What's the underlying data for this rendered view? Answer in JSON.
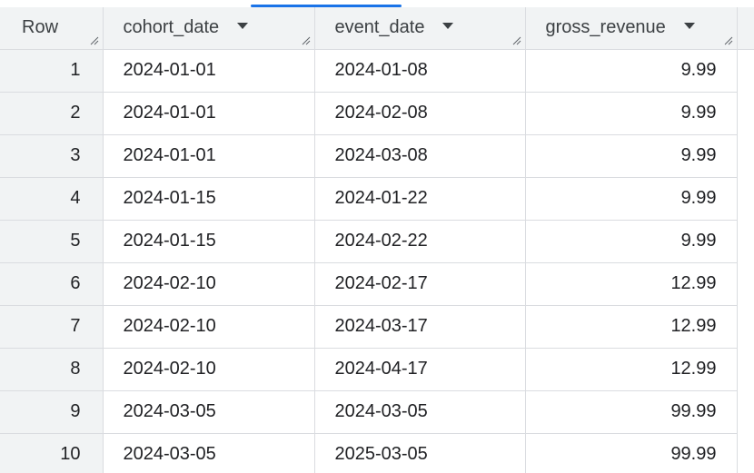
{
  "table": {
    "columns": [
      {
        "label": "Row"
      },
      {
        "label": "cohort_date"
      },
      {
        "label": "event_date"
      },
      {
        "label": "gross_revenue"
      }
    ],
    "rows": [
      {
        "row": "1",
        "cohort_date": "2024-01-01",
        "event_date": "2024-01-08",
        "gross_revenue": "9.99"
      },
      {
        "row": "2",
        "cohort_date": "2024-01-01",
        "event_date": "2024-02-08",
        "gross_revenue": "9.99"
      },
      {
        "row": "3",
        "cohort_date": "2024-01-01",
        "event_date": "2024-03-08",
        "gross_revenue": "9.99"
      },
      {
        "row": "4",
        "cohort_date": "2024-01-15",
        "event_date": "2024-01-22",
        "gross_revenue": "9.99"
      },
      {
        "row": "5",
        "cohort_date": "2024-01-15",
        "event_date": "2024-02-22",
        "gross_revenue": "9.99"
      },
      {
        "row": "6",
        "cohort_date": "2024-02-10",
        "event_date": "2024-02-17",
        "gross_revenue": "12.99"
      },
      {
        "row": "7",
        "cohort_date": "2024-02-10",
        "event_date": "2024-03-17",
        "gross_revenue": "12.99"
      },
      {
        "row": "8",
        "cohort_date": "2024-02-10",
        "event_date": "2024-04-17",
        "gross_revenue": "12.99"
      },
      {
        "row": "9",
        "cohort_date": "2024-03-05",
        "event_date": "2024-03-05",
        "gross_revenue": "99.99"
      },
      {
        "row": "10",
        "cohort_date": "2024-03-05",
        "event_date": "2025-03-05",
        "gross_revenue": "99.99"
      }
    ]
  },
  "icons": {
    "sort_menu": "chevron-down-icon",
    "resize": "resize-handle-icon"
  },
  "colors": {
    "header_bg": "#f1f3f4",
    "grid_line": "#dadce0",
    "text": "#202124",
    "accent": "#1a73e8"
  }
}
